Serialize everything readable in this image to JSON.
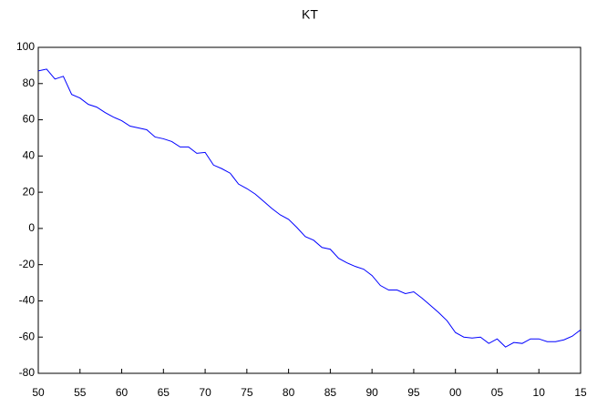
{
  "chart_data": {
    "type": "line",
    "title": "KT",
    "x": [
      1950,
      1951,
      1952,
      1953,
      1954,
      1955,
      1956,
      1957,
      1958,
      1959,
      1960,
      1961,
      1962,
      1963,
      1964,
      1965,
      1966,
      1967,
      1968,
      1969,
      1970,
      1971,
      1972,
      1973,
      1974,
      1975,
      1976,
      1977,
      1978,
      1979,
      1980,
      1981,
      1982,
      1983,
      1984,
      1985,
      1986,
      1987,
      1988,
      1989,
      1990,
      1991,
      1992,
      1993,
      1994,
      1995,
      1996,
      1997,
      1998,
      1999,
      2000,
      2001,
      2002,
      2003,
      2004,
      2005,
      2006,
      2007,
      2008,
      2009,
      2010,
      2011,
      2012,
      2013,
      2014,
      2015
    ],
    "values": [
      87,
      88,
      82.5,
      84,
      74,
      72,
      68.5,
      67,
      64,
      61.5,
      59.5,
      56.5,
      55.5,
      54.5,
      50.5,
      49.5,
      48,
      45,
      45,
      41.5,
      42,
      35,
      33,
      30.5,
      24.5,
      22,
      19,
      15,
      11,
      7.5,
      5,
      0.5,
      -4.5,
      -6.5,
      -10.5,
      -11.5,
      -16.5,
      -19,
      -21,
      -22.5,
      -26,
      -31.5,
      -34,
      -34,
      -36,
      -35,
      -38.5,
      -42.5,
      -46.5,
      -51,
      -57.5,
      -60,
      -60.5,
      -60,
      -63.5,
      -61,
      -65.5,
      -63,
      -63.5,
      -61,
      -61,
      -62.5,
      -62.5,
      -61.5,
      -59.5,
      -56
    ],
    "color": "#0000ff",
    "xlim": [
      1950,
      2015
    ],
    "xticks": [
      {
        "value": 1950,
        "label": "50"
      },
      {
        "value": 1955,
        "label": "55"
      },
      {
        "value": 1960,
        "label": "60"
      },
      {
        "value": 1965,
        "label": "65"
      },
      {
        "value": 1970,
        "label": "70"
      },
      {
        "value": 1975,
        "label": "75"
      },
      {
        "value": 1980,
        "label": "80"
      },
      {
        "value": 1985,
        "label": "85"
      },
      {
        "value": 1990,
        "label": "90"
      },
      {
        "value": 1995,
        "label": "95"
      },
      {
        "value": 2000,
        "label": "00"
      },
      {
        "value": 2005,
        "label": "05"
      },
      {
        "value": 2010,
        "label": "10"
      },
      {
        "value": 2015,
        "label": "15"
      }
    ],
    "ylim": [
      -80,
      100
    ],
    "yticks": [
      -80,
      -60,
      -40,
      -20,
      0,
      20,
      40,
      60,
      80,
      100
    ],
    "grid": false
  }
}
